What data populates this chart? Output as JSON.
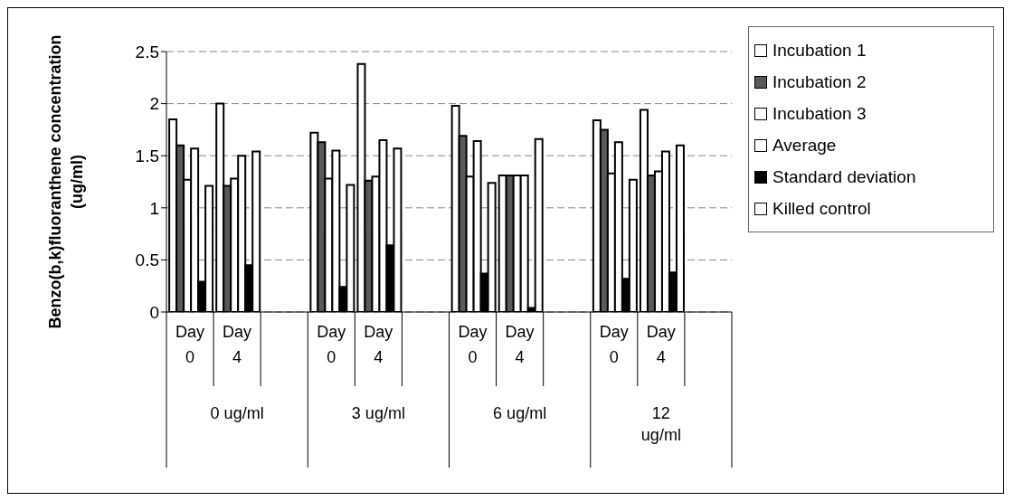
{
  "chart_data": {
    "type": "bar",
    "ylabel": "Benzo(b,k)fluoranthene concentration (ug/ml)",
    "categories": [
      "Day 0",
      "Day 4",
      null,
      "Day 0",
      "Day 4",
      null,
      "Day 0",
      "Day 4",
      null,
      "Day 0",
      "Day 4",
      null
    ],
    "series": [
      {
        "name": "Incubation 1",
        "color": "#ffffff",
        "values": [
          1.85,
          2.0,
          null,
          1.72,
          2.38,
          null,
          1.98,
          1.31,
          null,
          1.84,
          1.94,
          null
        ]
      },
      {
        "name": "Incubation 2",
        "color": "#5a5a5a",
        "values": [
          1.6,
          1.21,
          null,
          1.63,
          1.26,
          null,
          1.69,
          1.31,
          null,
          1.75,
          1.31,
          null
        ]
      },
      {
        "name": "Incubation 3",
        "color": "#ffffff",
        "values": [
          1.27,
          1.28,
          null,
          1.28,
          1.3,
          null,
          1.3,
          1.31,
          null,
          1.33,
          1.35,
          null
        ]
      },
      {
        "name": "Average",
        "color": "#ffffff",
        "values": [
          1.57,
          1.5,
          null,
          1.55,
          1.65,
          null,
          1.64,
          1.31,
          null,
          1.63,
          1.54,
          null
        ]
      },
      {
        "name": "Standard deviation",
        "color": "#000000",
        "values": [
          0.29,
          0.45,
          null,
          0.24,
          0.64,
          null,
          0.37,
          0.04,
          null,
          0.32,
          0.38,
          null
        ]
      },
      {
        "name": "Killed control",
        "color": "#ffffff",
        "values": [
          1.21,
          1.54,
          null,
          1.22,
          1.57,
          null,
          1.24,
          1.66,
          null,
          1.27,
          1.6,
          null
        ]
      }
    ],
    "annotations": [
      "0 ug/ml",
      "3 ug/ml",
      "6 ug/ml",
      "12 ug/ml"
    ],
    "ylim": [
      0,
      2.5
    ],
    "yticks": [
      0,
      0.5,
      1,
      1.5,
      2,
      2.5
    ],
    "grid": "y",
    "legend": "right"
  }
}
